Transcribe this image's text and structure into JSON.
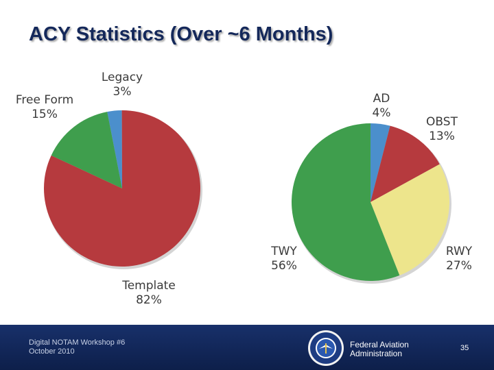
{
  "title": "ACY Statistics (Over ~6 Months)",
  "chart_data": [
    {
      "type": "pie",
      "slices": [
        {
          "label": "Legacy",
          "value": 3,
          "display": "3%",
          "color": "#4b8fcc"
        },
        {
          "label": "Template",
          "value": 82,
          "display": "82%",
          "color": "#b63a3e"
        },
        {
          "label": "Free Form",
          "value": 15,
          "display": "15%",
          "color": "#3f9e4d"
        }
      ]
    },
    {
      "type": "pie",
      "slices": [
        {
          "label": "AD",
          "value": 4,
          "display": "4%",
          "color": "#4b8fcc"
        },
        {
          "label": "OBST",
          "value": 13,
          "display": "13%",
          "color": "#b63a3e"
        },
        {
          "label": "RWY",
          "value": 27,
          "display": "27%",
          "color": "#ede58c"
        },
        {
          "label": "TWY",
          "value": 56,
          "display": "56%",
          "color": "#3f9e4d"
        }
      ]
    }
  ],
  "footer": {
    "event": "Digital NOTAM Workshop #6",
    "date": "October 2010",
    "agency_line1": "Federal Aviation",
    "agency_line2": "Administration",
    "page_number": "35"
  }
}
